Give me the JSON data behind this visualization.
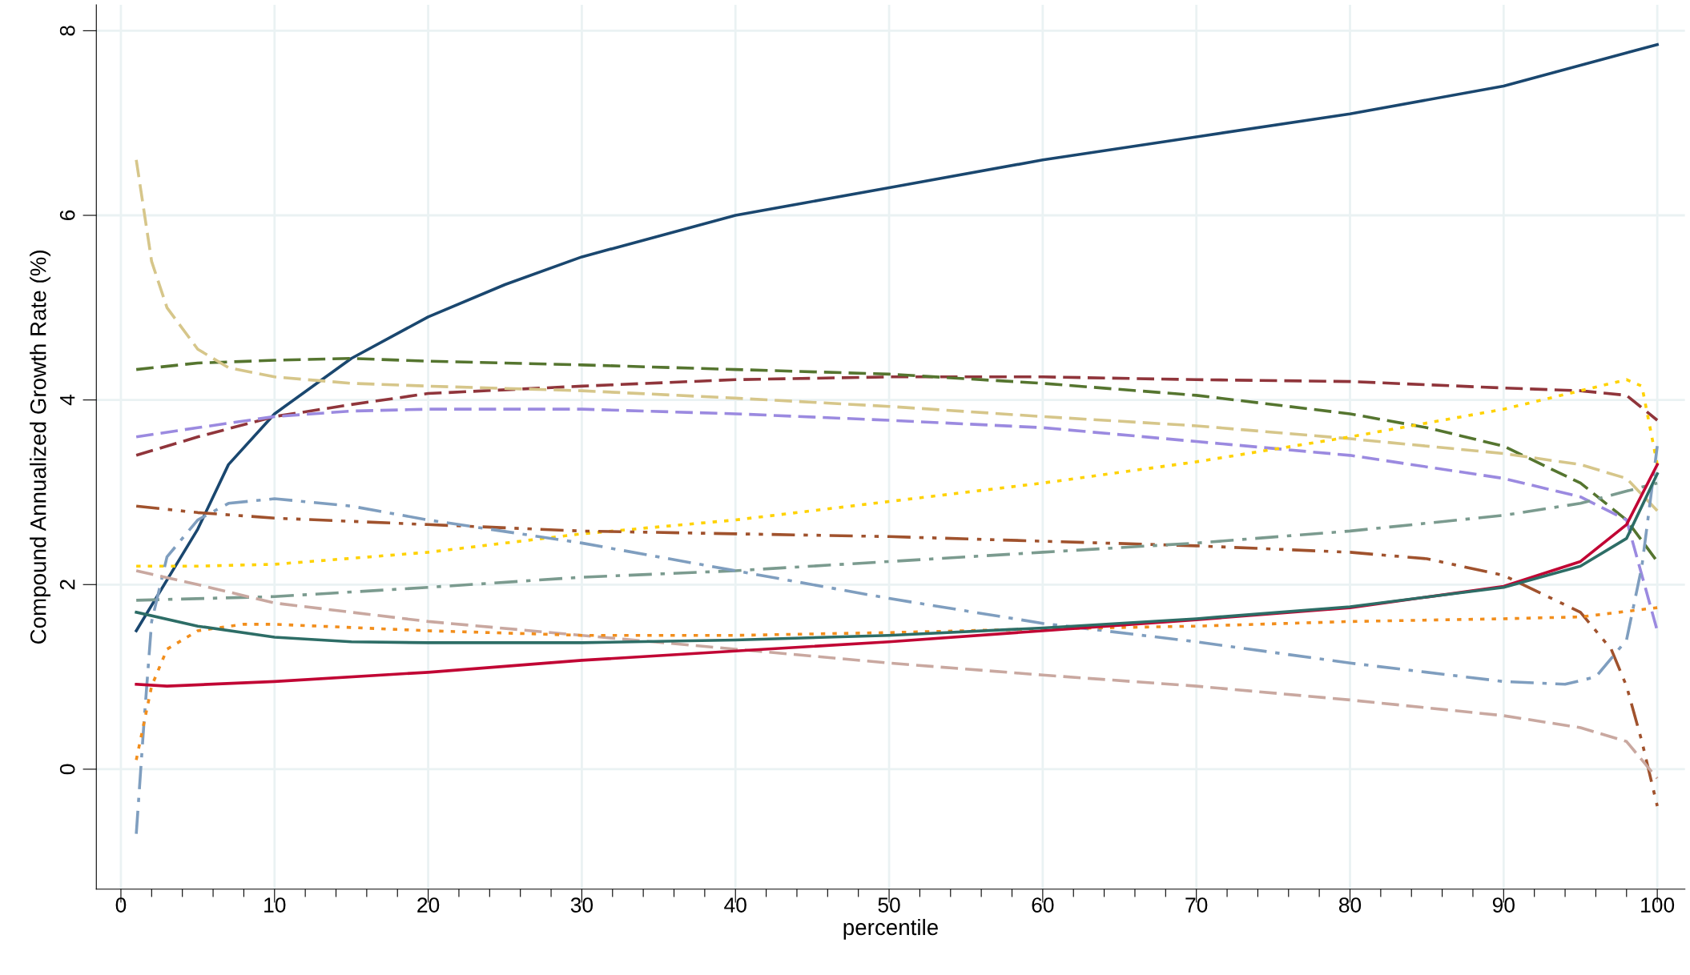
{
  "chart_data": {
    "type": "line",
    "xlabel": "percentile",
    "ylabel": "Compound Annualized Growth Rate (%)",
    "xlim": [
      -1.6,
      101.8
    ],
    "ylim": [
      -1.3,
      8.28
    ],
    "xticks": [
      0,
      {
        "value": 2,
        "label": null
      },
      {
        "value": 4,
        "label": null
      },
      {
        "value": 6,
        "label": null
      },
      {
        "value": 8,
        "label": null
      },
      10,
      {
        "value": 12,
        "label": null
      },
      {
        "value": 14,
        "label": null
      },
      {
        "value": 16,
        "label": null
      },
      {
        "value": 18,
        "label": null
      },
      20,
      {
        "value": 22,
        "label": null
      },
      {
        "value": 24,
        "label": null
      },
      {
        "value": 26,
        "label": null
      },
      {
        "value": 28,
        "label": null
      },
      30,
      {
        "value": 32,
        "label": null
      },
      {
        "value": 34,
        "label": null
      },
      {
        "value": 36,
        "label": null
      },
      {
        "value": 38,
        "label": null
      },
      40,
      {
        "value": 42,
        "label": null
      },
      {
        "value": 44,
        "label": null
      },
      {
        "value": 46,
        "label": null
      },
      {
        "value": 48,
        "label": null
      },
      50,
      {
        "value": 52,
        "label": null
      },
      {
        "value": 54,
        "label": null
      },
      {
        "value": 56,
        "label": null
      },
      {
        "value": 58,
        "label": null
      },
      60,
      {
        "value": 62,
        "label": null
      },
      {
        "value": 64,
        "label": null
      },
      {
        "value": 66,
        "label": null
      },
      {
        "value": 68,
        "label": null
      },
      70,
      {
        "value": 72,
        "label": null
      },
      {
        "value": 74,
        "label": null
      },
      {
        "value": 76,
        "label": null
      },
      {
        "value": 78,
        "label": null
      },
      80,
      {
        "value": 82,
        "label": null
      },
      {
        "value": 84,
        "label": null
      },
      {
        "value": 86,
        "label": null
      },
      {
        "value": 88,
        "label": null
      },
      90,
      {
        "value": 92,
        "label": null
      },
      {
        "value": 94,
        "label": null
      },
      {
        "value": 96,
        "label": null
      },
      {
        "value": 98,
        "label": null
      },
      100
    ],
    "yticks": [
      0,
      2,
      4,
      6,
      8
    ],
    "grid": true,
    "marker": "none",
    "series": [
      {
        "color": "#1a476f",
        "line_style": "solid",
        "x": [
          1,
          5,
          7,
          10,
          15,
          20,
          25,
          30,
          40,
          50,
          60,
          70,
          80,
          90,
          100
        ],
        "values": [
          1.5,
          2.6,
          3.3,
          3.85,
          4.45,
          4.9,
          5.25,
          5.55,
          6.0,
          6.3,
          6.6,
          6.85,
          7.1,
          7.4,
          7.85
        ]
      },
      {
        "color": "#90353b",
        "line_style": "dashed",
        "x": [
          1,
          5,
          10,
          15,
          20,
          30,
          40,
          50,
          60,
          70,
          80,
          90,
          95,
          98,
          100
        ],
        "values": [
          3.4,
          3.6,
          3.82,
          3.95,
          4.07,
          4.15,
          4.22,
          4.25,
          4.25,
          4.22,
          4.2,
          4.13,
          4.1,
          4.05,
          3.78
        ]
      },
      {
        "color": "#55752f",
        "line_style": "dashed",
        "x": [
          1,
          5,
          10,
          15,
          20,
          30,
          40,
          50,
          60,
          70,
          80,
          85,
          90,
          95,
          98,
          100
        ],
        "values": [
          4.33,
          4.4,
          4.43,
          4.45,
          4.42,
          4.38,
          4.33,
          4.28,
          4.18,
          4.05,
          3.85,
          3.7,
          3.5,
          3.1,
          2.7,
          2.25
        ]
      },
      {
        "color": "#d6c68a",
        "line_style": "dashed",
        "x": [
          1,
          2,
          3,
          5,
          7,
          10,
          15,
          20,
          30,
          40,
          50,
          60,
          70,
          80,
          90,
          95,
          98,
          100
        ],
        "values": [
          6.6,
          5.5,
          5.0,
          4.55,
          4.35,
          4.25,
          4.18,
          4.15,
          4.1,
          4.02,
          3.93,
          3.82,
          3.72,
          3.58,
          3.42,
          3.3,
          3.15,
          2.8
        ]
      },
      {
        "color": "#9b8ae0",
        "line_style": "dashed",
        "x": [
          1,
          5,
          10,
          15,
          20,
          30,
          40,
          50,
          60,
          70,
          80,
          90,
          95,
          98,
          100
        ],
        "values": [
          3.6,
          3.7,
          3.82,
          3.88,
          3.9,
          3.9,
          3.85,
          3.78,
          3.7,
          3.55,
          3.4,
          3.15,
          2.95,
          2.7,
          1.5
        ]
      },
      {
        "color": "#ffd200",
        "line_style": "dotted",
        "x": [
          1,
          5,
          10,
          20,
          30,
          40,
          50,
          60,
          70,
          80,
          90,
          95,
          98,
          99,
          100
        ],
        "values": [
          2.2,
          2.2,
          2.22,
          2.35,
          2.55,
          2.7,
          2.9,
          3.1,
          3.33,
          3.6,
          3.9,
          4.1,
          4.22,
          4.15,
          3.3
        ]
      },
      {
        "color": "#a0522d",
        "line_style": "dashdotdot",
        "x": [
          1,
          5,
          10,
          20,
          30,
          40,
          50,
          60,
          70,
          80,
          85,
          90,
          95,
          97,
          98,
          99,
          100
        ],
        "values": [
          2.85,
          2.78,
          2.72,
          2.65,
          2.58,
          2.55,
          2.52,
          2.47,
          2.42,
          2.35,
          2.28,
          2.1,
          1.7,
          1.3,
          0.9,
          0.3,
          -0.4
        ]
      },
      {
        "color": "#7b9b8f",
        "line_style": "dashdot",
        "x": [
          1,
          10,
          20,
          30,
          40,
          50,
          60,
          70,
          80,
          90,
          95,
          100
        ],
        "values": [
          1.83,
          1.87,
          1.97,
          2.08,
          2.15,
          2.25,
          2.35,
          2.45,
          2.58,
          2.75,
          2.88,
          3.1
        ]
      },
      {
        "color": "#7f9ebf",
        "line_style": "dashdot",
        "x": [
          1,
          1.5,
          2,
          3,
          5,
          7,
          10,
          15,
          20,
          30,
          40,
          50,
          60,
          70,
          80,
          90,
          94,
          96,
          98,
          99,
          100
        ],
        "values": [
          -0.7,
          0.5,
          1.6,
          2.3,
          2.7,
          2.88,
          2.93,
          2.85,
          2.7,
          2.45,
          2.15,
          1.85,
          1.58,
          1.38,
          1.15,
          0.95,
          0.92,
          1.0,
          1.4,
          2.2,
          3.5
        ]
      },
      {
        "color": "#c9a8a0",
        "line_style": "dashed",
        "x": [
          1,
          5,
          10,
          20,
          30,
          40,
          50,
          60,
          70,
          80,
          90,
          95,
          98,
          100
        ],
        "values": [
          2.15,
          2.0,
          1.8,
          1.6,
          1.45,
          1.3,
          1.15,
          1.02,
          0.9,
          0.75,
          0.58,
          0.45,
          0.3,
          -0.1
        ]
      },
      {
        "color": "#f28e1c",
        "line_style": "dotted",
        "x": [
          1,
          2,
          3,
          5,
          8,
          10,
          20,
          30,
          40,
          50,
          60,
          70,
          80,
          90,
          95,
          100
        ],
        "values": [
          0.1,
          0.9,
          1.3,
          1.5,
          1.57,
          1.57,
          1.5,
          1.45,
          1.45,
          1.48,
          1.52,
          1.55,
          1.6,
          1.63,
          1.65,
          1.75
        ]
      },
      {
        "color": "#c10534",
        "line_style": "solid",
        "x": [
          1,
          3,
          10,
          20,
          30,
          40,
          50,
          60,
          70,
          80,
          90,
          95,
          98,
          100
        ],
        "values": [
          0.92,
          0.9,
          0.95,
          1.05,
          1.18,
          1.28,
          1.38,
          1.5,
          1.62,
          1.75,
          1.98,
          2.25,
          2.65,
          3.3
        ]
      },
      {
        "color": "#2d6d66",
        "line_style": "solid",
        "x": [
          1,
          5,
          10,
          15,
          20,
          30,
          40,
          50,
          60,
          70,
          80,
          90,
          95,
          98,
          100
        ],
        "values": [
          1.7,
          1.55,
          1.43,
          1.38,
          1.37,
          1.37,
          1.4,
          1.45,
          1.53,
          1.63,
          1.76,
          1.97,
          2.2,
          2.5,
          3.2
        ]
      }
    ]
  }
}
